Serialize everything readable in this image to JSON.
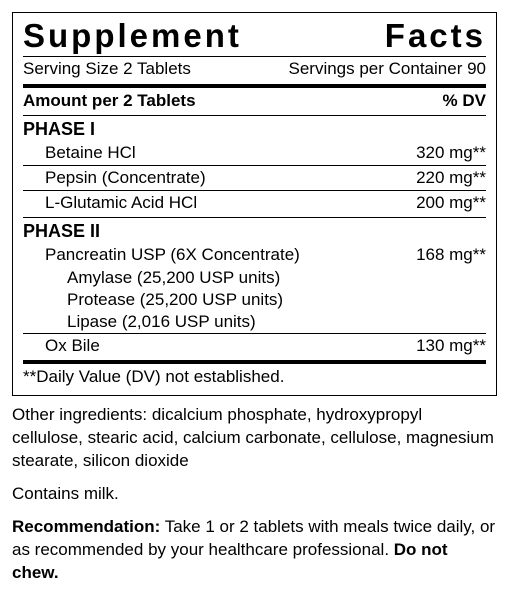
{
  "title": "Supplement Facts",
  "serving_size_label": "Serving Size 2 Tablets",
  "servings_per_container": "Servings per Container 90",
  "amount_header_left": "Amount per 2 Tablets",
  "amount_header_right": "% DV",
  "phase1": {
    "label": "PHASE I",
    "rows": [
      {
        "name": "Betaine HCl",
        "value": "320 mg**"
      },
      {
        "name": "Pepsin (Concentrate)",
        "value": "220 mg**"
      },
      {
        "name": "L-Glutamic Acid HCl",
        "value": "200 mg**"
      }
    ]
  },
  "phase2": {
    "label": "PHASE II",
    "pancreatin": {
      "name": "Pancreatin USP (6X Concentrate)",
      "value": "168 mg**",
      "subs": [
        "Amylase (25,200 USP units)",
        "Protease (25,200 USP units)",
        "Lipase (2,016 USP units)"
      ]
    },
    "oxbile": {
      "name": "Ox Bile",
      "value": "130 mg**"
    }
  },
  "dv_footnote": "**Daily Value (DV) not established.",
  "other_ingredients": "Other ingredients: dicalcium phosphate, hydroxypropyl cellulose, stearic acid, calcium carbonate, cellulose, magnesium stearate, silicon dioxide",
  "contains": "Contains milk.",
  "recommendation_label": "Recommendation:",
  "recommendation_text": " Take 1 or 2 tablets with meals twice daily, or as recommended by your healthcare professional. ",
  "recommendation_bold_end": "Do not chew."
}
